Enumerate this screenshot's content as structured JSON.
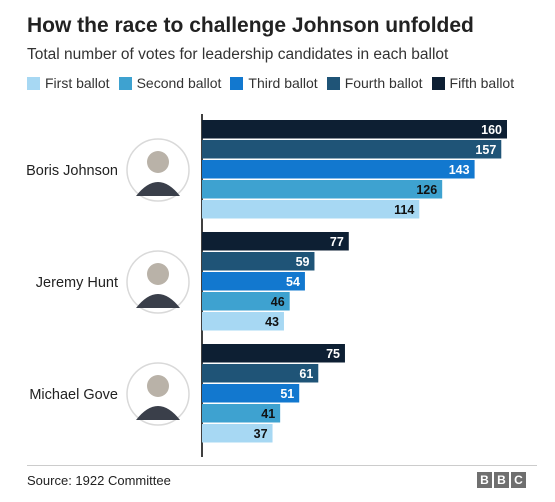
{
  "chart_data": {
    "type": "bar",
    "orientation": "horizontal",
    "title": "How the race to challenge Johnson unfolded",
    "subtitle": "Total number of votes for leadership candidates in each ballot",
    "categories": [
      "Boris Johnson",
      "Jeremy Hunt",
      "Michael Gove"
    ],
    "series": [
      {
        "name": "Fifth ballot",
        "color": "#0d1f33",
        "values": [
          160,
          77,
          75
        ]
      },
      {
        "name": "Fourth ballot",
        "color": "#1f5477",
        "values": [
          157,
          59,
          61
        ]
      },
      {
        "name": "Third ballot",
        "color": "#1278cf",
        "values": [
          143,
          54,
          51
        ]
      },
      {
        "name": "Second ballot",
        "color": "#3ea2d0",
        "values": [
          126,
          46,
          41
        ]
      },
      {
        "name": "First ballot",
        "color": "#a7d8f3",
        "values": [
          114,
          43,
          37
        ]
      }
    ],
    "legend_order": [
      "First ballot",
      "Second ballot",
      "Third ballot",
      "Fourth ballot",
      "Fifth ballot"
    ],
    "xlim": [
      0,
      160
    ],
    "legend_position": "top",
    "grid": false,
    "data_labels": true
  },
  "source": "Source: 1922 Committee",
  "logo": {
    "letters": [
      "B",
      "B",
      "C"
    ]
  }
}
